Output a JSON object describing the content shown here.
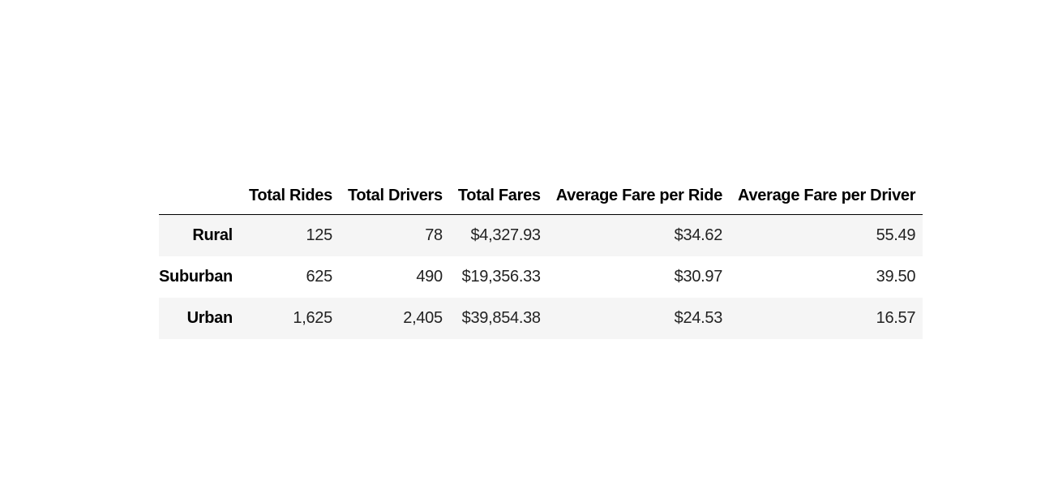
{
  "table": {
    "columns": [
      "Total Rides",
      "Total Drivers",
      "Total Fares",
      "Average Fare per Ride",
      "Average Fare per Driver"
    ],
    "rows": [
      {
        "label": "Rural",
        "cells": [
          "125",
          "78",
          "$4,327.93",
          "$34.62",
          "55.49"
        ]
      },
      {
        "label": "Suburban",
        "cells": [
          "625",
          "490",
          "$19,356.33",
          "$30.97",
          "39.50"
        ]
      },
      {
        "label": "Urban",
        "cells": [
          "1,625",
          "2,405",
          "$39,854.38",
          "$24.53",
          "16.57"
        ]
      }
    ]
  }
}
